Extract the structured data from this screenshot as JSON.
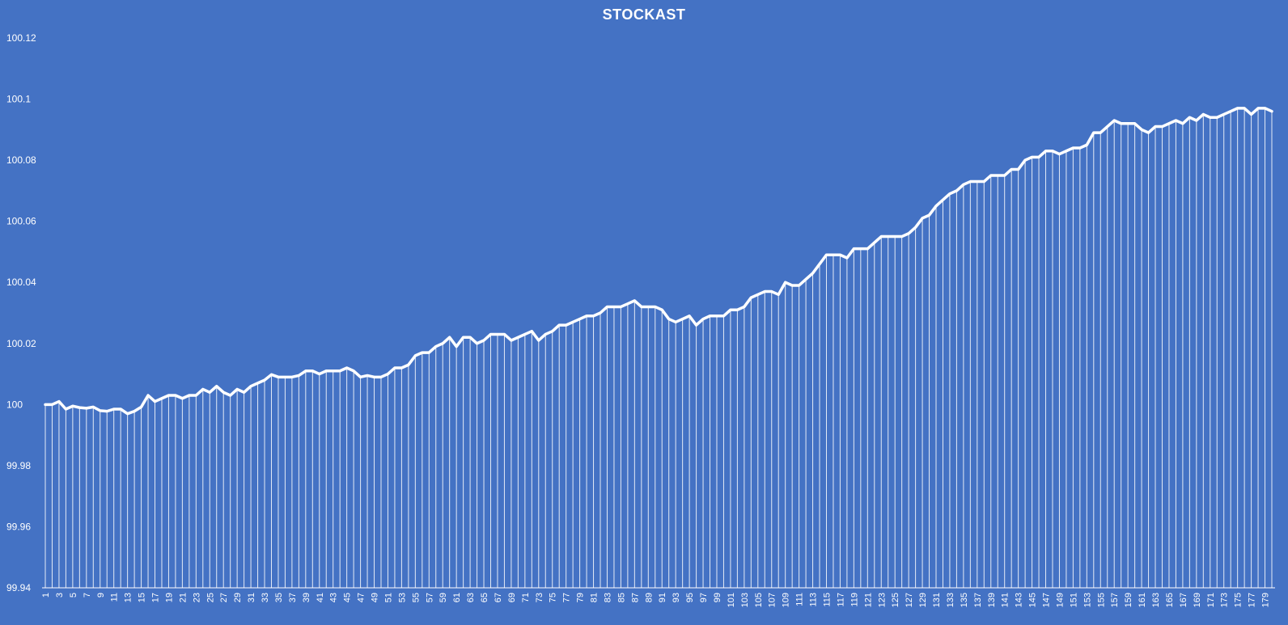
{
  "chart_data": {
    "type": "line",
    "title": "STOCKAST",
    "xlabel": "",
    "ylabel": "",
    "ylim": [
      99.94,
      100.12
    ],
    "yticks": [
      "99.94",
      "99.96",
      "99.98",
      "100",
      "100.02",
      "100.04",
      "100.06",
      "100.08",
      "100.1",
      "100.12"
    ],
    "x_start": 1,
    "x_end": 180,
    "x_tick_step": 2,
    "grid": false,
    "legend": "none",
    "drop_lines": true,
    "colors": {
      "background": "#4472C4",
      "line": "#FFFFFF"
    },
    "values": [
      100.0,
      100.0,
      100.001,
      99.9985,
      99.9995,
      99.999,
      99.9988,
      99.9992,
      99.998,
      99.9978,
      99.9985,
      99.9985,
      99.997,
      99.9978,
      99.9992,
      100.003,
      100.001,
      100.002,
      100.003,
      100.003,
      100.002,
      100.003,
      100.003,
      100.005,
      100.004,
      100.006,
      100.004,
      100.003,
      100.005,
      100.004,
      100.006,
      100.007,
      100.008,
      100.0098,
      100.009,
      100.009,
      100.009,
      100.0095,
      100.011,
      100.011,
      100.01,
      100.011,
      100.011,
      100.011,
      100.012,
      100.011,
      100.009,
      100.0095,
      100.009,
      100.009,
      100.01,
      100.012,
      100.012,
      100.013,
      100.016,
      100.017,
      100.017,
      100.019,
      100.02,
      100.022,
      100.019,
      100.022,
      100.022,
      100.02,
      100.021,
      100.023,
      100.023,
      100.023,
      100.021,
      100.022,
      100.023,
      100.024,
      100.021,
      100.023,
      100.024,
      100.026,
      100.026,
      100.027,
      100.028,
      100.029,
      100.029,
      100.03,
      100.032,
      100.032,
      100.032,
      100.033,
      100.034,
      100.032,
      100.032,
      100.032,
      100.031,
      100.028,
      100.027,
      100.028,
      100.029,
      100.026,
      100.028,
      100.029,
      100.029,
      100.029,
      100.031,
      100.031,
      100.032,
      100.035,
      100.036,
      100.037,
      100.037,
      100.036,
      100.04,
      100.039,
      100.039,
      100.041,
      100.043,
      100.046,
      100.049,
      100.049,
      100.049,
      100.048,
      100.051,
      100.051,
      100.051,
      100.053,
      100.055,
      100.055,
      100.055,
      100.055,
      100.056,
      100.058,
      100.061,
      100.062,
      100.065,
      100.067,
      100.069,
      100.07,
      100.072,
      100.073,
      100.073,
      100.073,
      100.075,
      100.075,
      100.075,
      100.077,
      100.077,
      100.08,
      100.081,
      100.081,
      100.083,
      100.083,
      100.082,
      100.083,
      100.084,
      100.084,
      100.085,
      100.089,
      100.089,
      100.091,
      100.093,
      100.092,
      100.092,
      100.092,
      100.09,
      100.089,
      100.091,
      100.091,
      100.092,
      100.093,
      100.092,
      100.094,
      100.093,
      100.095,
      100.094,
      100.094,
      100.095,
      100.096,
      100.097,
      100.097,
      100.095,
      100.097,
      100.097,
      100.096
    ]
  }
}
